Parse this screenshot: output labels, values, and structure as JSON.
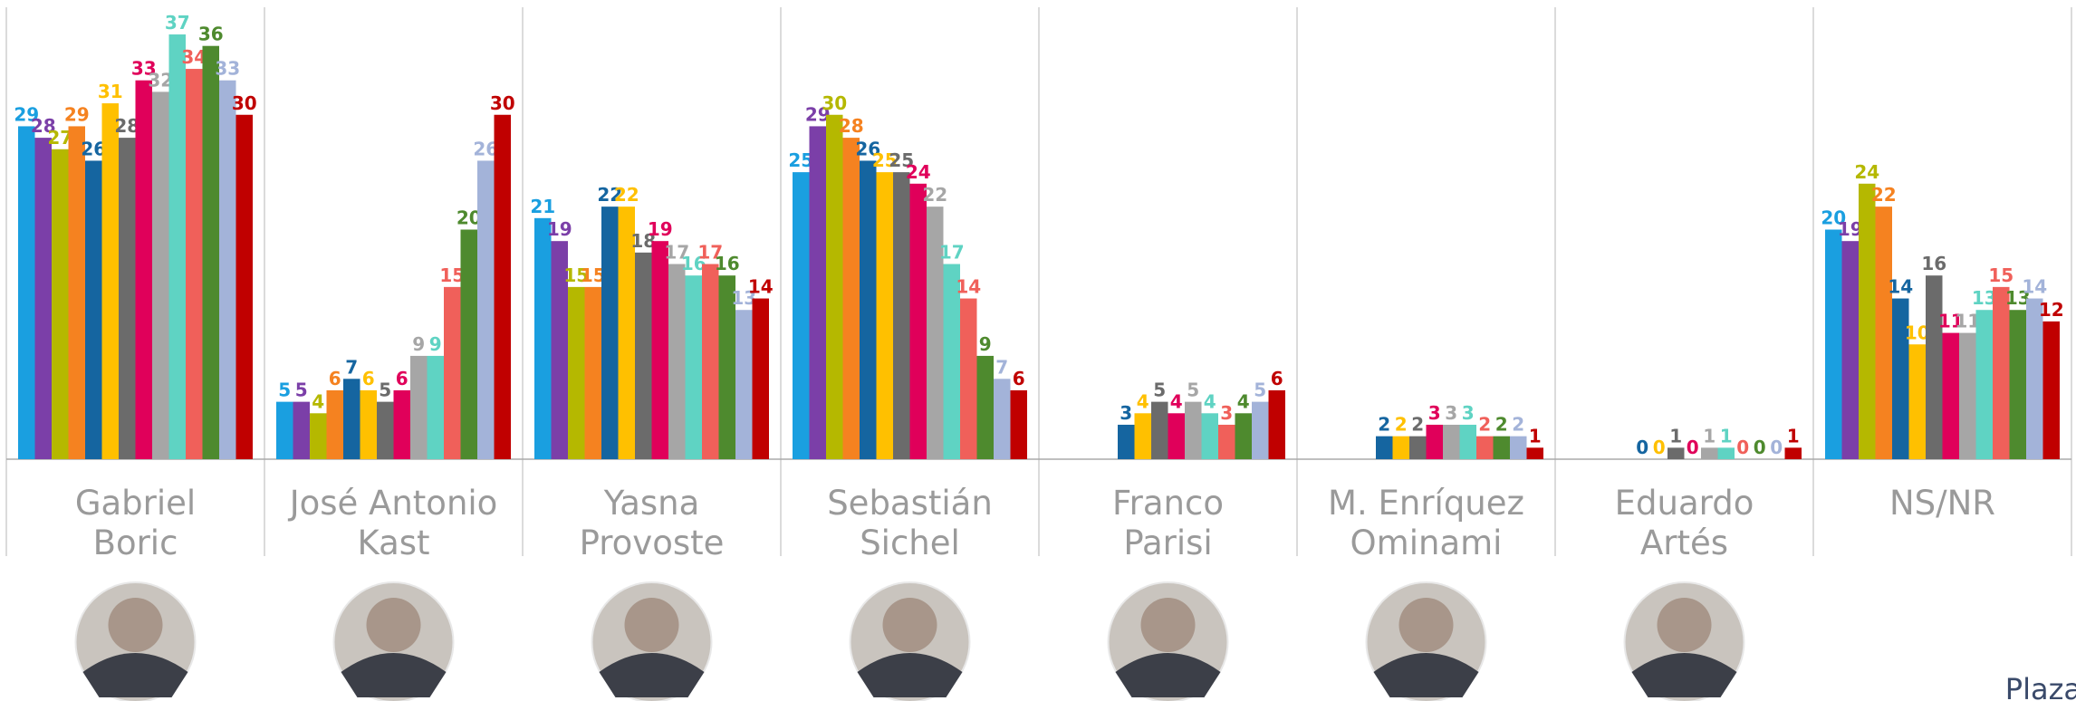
{
  "chart_data": {
    "type": "bar",
    "categories": [
      [
        "Gabriel",
        "Boric"
      ],
      [
        "José Antonio",
        "Kast"
      ],
      [
        "Yasna",
        "Provoste"
      ],
      [
        "Sebastián",
        "Sichel"
      ],
      [
        "Franco",
        "Parisi"
      ],
      [
        "M. Enríquez",
        "Ominami"
      ],
      [
        "Eduardo",
        "Artés"
      ],
      [
        "NS/NR"
      ]
    ],
    "ylim": [
      0,
      40
    ],
    "series": [
      {
        "color": "#1a9fe0",
        "values": [
          29,
          5,
          21,
          25,
          null,
          null,
          null,
          20
        ]
      },
      {
        "color": "#7b3fa8",
        "values": [
          28,
          5,
          19,
          29,
          null,
          null,
          null,
          19
        ]
      },
      {
        "color": "#b5b800",
        "values": [
          27,
          4,
          15,
          30,
          null,
          null,
          null,
          24
        ]
      },
      {
        "color": "#f58220",
        "values": [
          29,
          6,
          15,
          28,
          null,
          null,
          null,
          22
        ]
      },
      {
        "color": "#1565a0",
        "values": [
          26,
          7,
          22,
          26,
          3,
          2,
          0,
          14
        ]
      },
      {
        "color": "#ffc000",
        "values": [
          31,
          6,
          22,
          25,
          4,
          2,
          0,
          10
        ]
      },
      {
        "color": "#6b6b6b",
        "values": [
          28,
          5,
          18,
          25,
          5,
          2,
          1,
          16
        ]
      },
      {
        "color": "#e0005a",
        "values": [
          33,
          6,
          19,
          24,
          4,
          3,
          0,
          11
        ]
      },
      {
        "color": "#a6a6a6",
        "values": [
          32,
          9,
          17,
          22,
          5,
          3,
          1,
          11
        ]
      },
      {
        "color": "#5fd3c3",
        "values": [
          37,
          9,
          16,
          17,
          4,
          3,
          1,
          13
        ]
      },
      {
        "color": "#f0605a",
        "values": [
          34,
          15,
          17,
          14,
          3,
          2,
          0,
          15
        ]
      },
      {
        "color": "#4e8a2e",
        "values": [
          36,
          20,
          16,
          9,
          4,
          2,
          0,
          13
        ]
      },
      {
        "color": "#a3b3d9",
        "values": [
          33,
          26,
          13,
          7,
          5,
          2,
          0,
          14
        ]
      },
      {
        "color": "#c00000",
        "values": [
          30,
          30,
          14,
          6,
          6,
          1,
          1,
          12
        ]
      }
    ],
    "watermark": "Plaza"
  }
}
